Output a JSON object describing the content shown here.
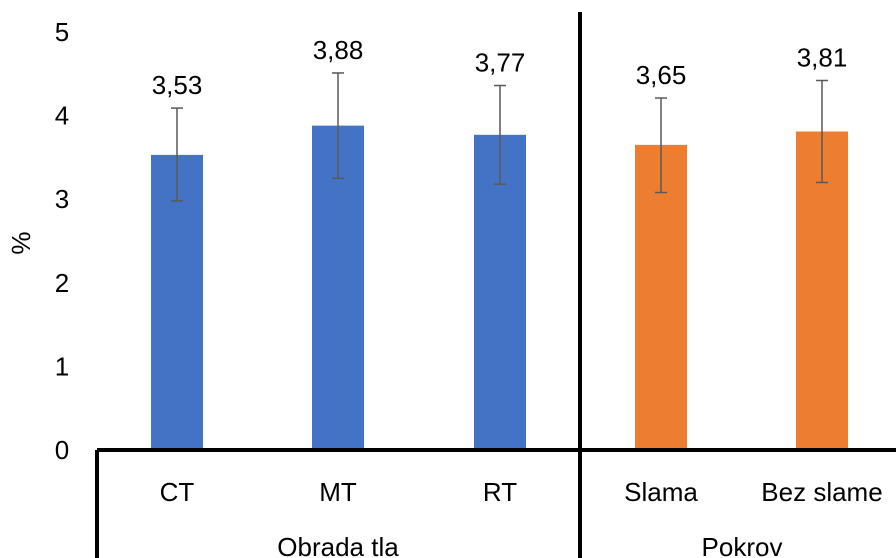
{
  "chart_data": {
    "type": "bar",
    "ylabel": "%",
    "ylim": [
      0,
      5
    ],
    "yticks": [
      0,
      1,
      2,
      3,
      4,
      5
    ],
    "grid": false,
    "groups": [
      {
        "label": "Obrada tla",
        "color": "#4472C4",
        "categories": [
          "CT",
          "MT",
          "RT"
        ],
        "values": [
          3.53,
          3.88,
          3.77
        ],
        "value_labels": [
          "3,53",
          "3,88",
          "3,77"
        ],
        "error_low": [
          2.98,
          3.25,
          3.18
        ],
        "error_high": [
          4.09,
          4.51,
          4.36
        ]
      },
      {
        "label": "Pokrov",
        "color": "#ED7D31",
        "categories": [
          "Slama",
          "Bez slame"
        ],
        "values": [
          3.65,
          3.81
        ],
        "value_labels": [
          "3,65",
          "3,81"
        ],
        "error_low": [
          3.08,
          3.2
        ],
        "error_high": [
          4.21,
          4.42
        ]
      }
    ]
  }
}
